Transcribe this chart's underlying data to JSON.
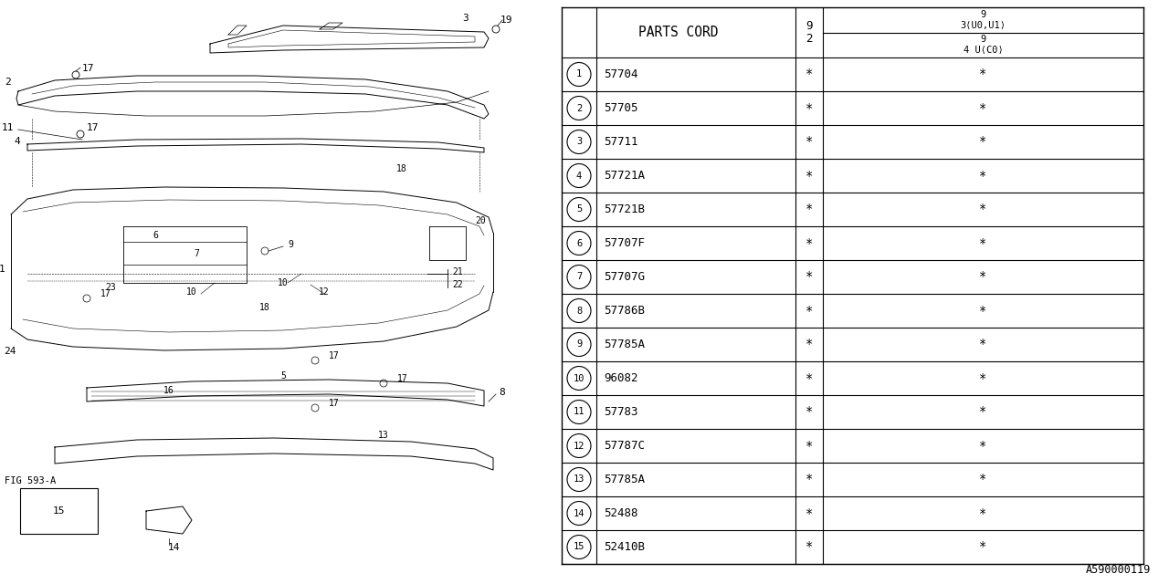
{
  "bg_color": "#ffffff",
  "col_header": "PARTS CORD",
  "parts": [
    {
      "num": "1",
      "code": "57704"
    },
    {
      "num": "2",
      "code": "57705"
    },
    {
      "num": "3",
      "code": "57711"
    },
    {
      "num": "4",
      "code": "57721A"
    },
    {
      "num": "5",
      "code": "57721B"
    },
    {
      "num": "6",
      "code": "57707F"
    },
    {
      "num": "7",
      "code": "57707G"
    },
    {
      "num": "8",
      "code": "57786B"
    },
    {
      "num": "9",
      "code": "57785A"
    },
    {
      "num": "10",
      "code": "96082"
    },
    {
      "num": "11",
      "code": "57783"
    },
    {
      "num": "12",
      "code": "57787C"
    },
    {
      "num": "13",
      "code": "57785A"
    },
    {
      "num": "14",
      "code": "52488"
    },
    {
      "num": "15",
      "code": "52410B"
    }
  ],
  "watermark": "A590000119",
  "line_color": "#000000",
  "text_color": "#000000"
}
